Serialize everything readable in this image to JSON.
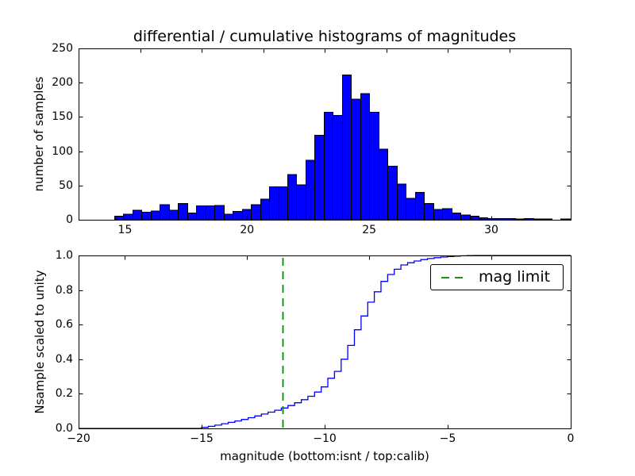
{
  "title": "differential / cumulative histograms of magnitudes",
  "legend": {
    "label": "mag limit"
  },
  "colors": {
    "histogram_fill": "#0000ff",
    "histogram_edge": "#000000",
    "cumulative_line": "#0000ff",
    "mag_limit_line": "#008000",
    "axis": "#000000",
    "background": "#ffffff",
    "text": "#000000"
  },
  "chart_data": [
    {
      "type": "bar",
      "role": "differential-histogram",
      "ylabel": "number of samples",
      "xlim": [
        13.1,
        33.25
      ],
      "ylim": [
        0,
        250
      ],
      "xtick_values": [
        15,
        20,
        25,
        30
      ],
      "xtick_labels": [
        "15",
        "20",
        "25",
        "30"
      ],
      "ytick_values": [
        0,
        50,
        100,
        150,
        200,
        250
      ],
      "ytick_labels": [
        "0",
        "50",
        "100",
        "150",
        "200",
        "250"
      ],
      "top_spine_tick_values_isnt": [
        -17.5,
        -15,
        -12.5,
        -10,
        -7.5,
        -5,
        -2.5
      ],
      "bin_start": 14.56,
      "bin_width": 0.373,
      "counts": [
        5,
        8,
        14,
        11,
        13,
        22,
        14,
        24,
        10,
        20,
        20,
        21,
        8,
        12,
        15,
        22,
        30,
        48,
        48,
        66,
        51,
        87,
        123,
        157,
        152,
        211,
        176,
        184,
        157,
        103,
        78,
        52,
        31,
        40,
        24,
        15,
        16,
        10,
        7,
        5,
        3,
        2,
        2,
        2,
        1,
        2,
        1,
        1,
        0,
        1
      ],
      "grid": false
    },
    {
      "type": "line",
      "role": "cumulative-histogram",
      "xlabel": "magnitude (bottom:isnt / top:calib)",
      "ylabel": "Nsample scaled to unity",
      "xlim": [
        -20,
        0
      ],
      "ylim": [
        0,
        1
      ],
      "xtick_values": [
        -20,
        -15,
        -10,
        -5,
        0
      ],
      "xtick_labels": [
        "−20",
        "−15",
        "−10",
        "−5",
        "0"
      ],
      "ytick_values": [
        0,
        0.2,
        0.4,
        0.6,
        0.8,
        1.0
      ],
      "ytick_labels": [
        "0.0",
        "0.2",
        "0.4",
        "0.6",
        "0.8",
        "1.0"
      ],
      "top_spine_tick_values_calib": [
        15,
        20,
        25,
        30
      ],
      "step_start": -15.0,
      "step_width": 0.27,
      "cumulative_values": [
        0.006,
        0.012,
        0.019,
        0.027,
        0.035,
        0.043,
        0.052,
        0.062,
        0.072,
        0.083,
        0.094,
        0.105,
        0.118,
        0.132,
        0.148,
        0.166,
        0.186,
        0.21,
        0.24,
        0.29,
        0.33,
        0.4,
        0.48,
        0.57,
        0.65,
        0.73,
        0.79,
        0.85,
        0.89,
        0.92,
        0.945,
        0.958,
        0.968,
        0.976,
        0.982,
        0.987,
        0.991,
        0.994,
        0.996,
        0.998,
        0.999,
        1.0
      ],
      "mag_limit": -11.7,
      "legend_position": "upper right",
      "grid": false
    }
  ]
}
